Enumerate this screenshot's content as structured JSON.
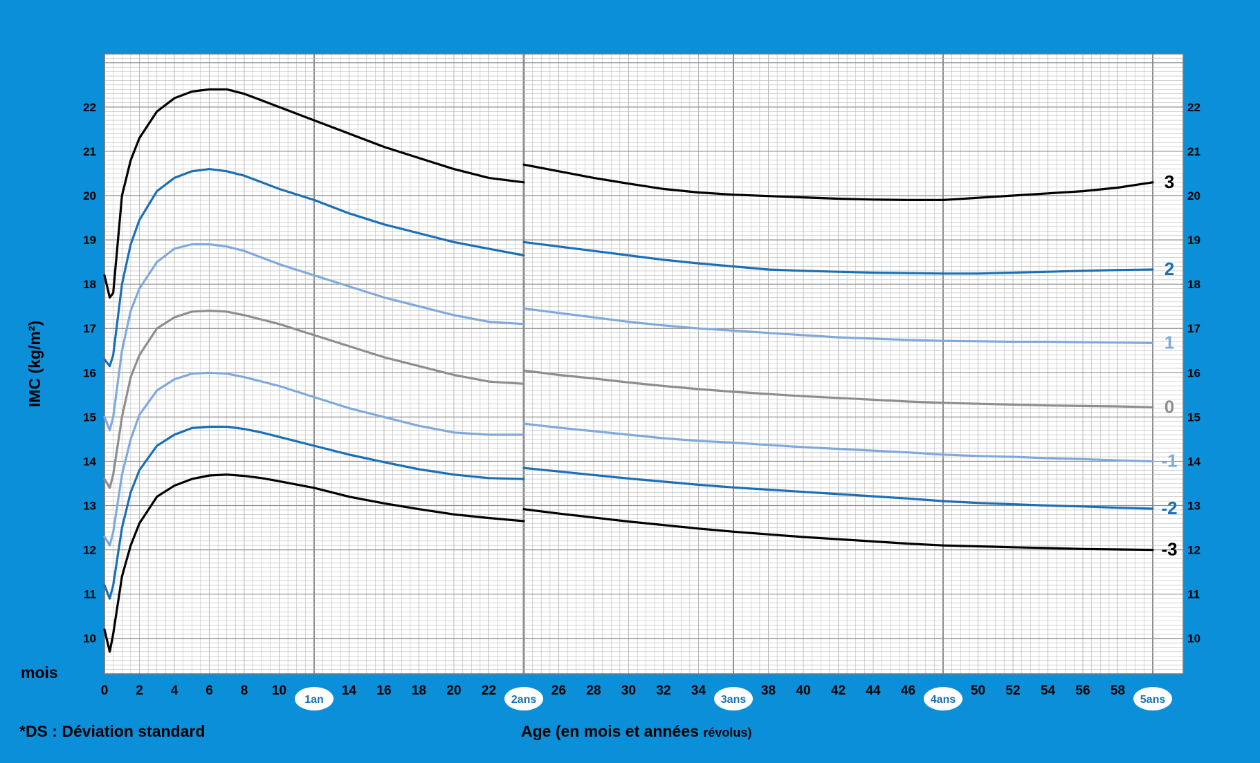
{
  "chart_data": {
    "type": "line",
    "title": "",
    "xlabel_main": "Age (en mois et années",
    "xlabel_small": "révolus)",
    "ylabel": "IMC (kg/m²)",
    "x_unit_label": "mois",
    "footnote": "*DS : Déviation standard",
    "xlim": [
      0,
      60
    ],
    "ylim": [
      9.2,
      23.2
    ],
    "x_ticks": [
      0,
      2,
      4,
      6,
      8,
      10,
      14,
      16,
      18,
      20,
      22,
      26,
      28,
      30,
      32,
      34,
      38,
      40,
      42,
      44,
      46,
      50,
      52,
      54,
      56,
      58
    ],
    "y_ticks": [
      10,
      11,
      12,
      13,
      14,
      15,
      16,
      17,
      18,
      19,
      20,
      21,
      22
    ],
    "year_markers": [
      {
        "x": 12,
        "label": "1an"
      },
      {
        "x": 24,
        "label": "2ans"
      },
      {
        "x": 36,
        "label": "3ans"
      },
      {
        "x": 48,
        "label": "4ans"
      },
      {
        "x": 60,
        "label": "5ans"
      }
    ],
    "grid": true,
    "segments_break_at": 24,
    "colors": {
      "background": "#0b8fd8",
      "plot": "#ffffff",
      "grid_minor": "#b9b9b9",
      "grid_major": "#8c8c8c",
      "sd_3": "#000000",
      "sd_2": "#1a6fb5",
      "sd_1": "#7fa9dc",
      "sd_0": "#8e8e8e"
    },
    "series": [
      {
        "name": "3",
        "color_key": "sd_3",
        "x": [
          0,
          0.3,
          0.5,
          1,
          1.5,
          2,
          3,
          4,
          5,
          6,
          7,
          8,
          9,
          10,
          12,
          14,
          16,
          18,
          20,
          22,
          24,
          24,
          26,
          28,
          30,
          32,
          34,
          36,
          38,
          40,
          42,
          44,
          46,
          48,
          50,
          52,
          54,
          56,
          58,
          60
        ],
        "y": [
          18.2,
          17.7,
          17.8,
          20.0,
          20.8,
          21.3,
          21.9,
          22.2,
          22.35,
          22.4,
          22.4,
          22.3,
          22.15,
          22.0,
          21.7,
          21.4,
          21.1,
          20.85,
          20.6,
          20.4,
          20.3,
          20.7,
          20.55,
          20.4,
          20.27,
          20.15,
          20.07,
          20.02,
          19.99,
          19.96,
          19.93,
          19.91,
          19.9,
          19.9,
          19.95,
          20.0,
          20.05,
          20.1,
          20.18,
          20.3
        ]
      },
      {
        "name": "2",
        "color_key": "sd_2",
        "x": [
          0,
          0.3,
          0.5,
          1,
          1.5,
          2,
          3,
          4,
          5,
          6,
          7,
          8,
          9,
          10,
          12,
          14,
          16,
          18,
          20,
          22,
          24,
          24,
          26,
          28,
          30,
          32,
          34,
          36,
          38,
          40,
          42,
          44,
          46,
          48,
          50,
          52,
          54,
          56,
          58,
          60
        ],
        "y": [
          16.3,
          16.15,
          16.4,
          18.0,
          18.9,
          19.45,
          20.1,
          20.4,
          20.55,
          20.6,
          20.55,
          20.45,
          20.3,
          20.15,
          19.9,
          19.6,
          19.35,
          19.15,
          18.95,
          18.8,
          18.65,
          18.95,
          18.85,
          18.75,
          18.65,
          18.55,
          18.47,
          18.4,
          18.33,
          18.3,
          18.28,
          18.26,
          18.25,
          18.24,
          18.24,
          18.26,
          18.28,
          18.3,
          18.32,
          18.33
        ]
      },
      {
        "name": "1",
        "color_key": "sd_1",
        "x": [
          0,
          0.3,
          0.5,
          1,
          1.5,
          2,
          3,
          4,
          5,
          6,
          7,
          8,
          9,
          10,
          12,
          14,
          16,
          18,
          20,
          22,
          24,
          24,
          26,
          28,
          30,
          32,
          34,
          36,
          38,
          40,
          42,
          44,
          46,
          48,
          50,
          52,
          54,
          56,
          58,
          60
        ],
        "y": [
          15.0,
          14.7,
          15.0,
          16.5,
          17.4,
          17.9,
          18.5,
          18.8,
          18.9,
          18.9,
          18.85,
          18.75,
          18.6,
          18.45,
          18.2,
          17.95,
          17.7,
          17.5,
          17.3,
          17.15,
          17.1,
          17.45,
          17.35,
          17.25,
          17.15,
          17.07,
          17.0,
          16.95,
          16.9,
          16.85,
          16.8,
          16.77,
          16.74,
          16.72,
          16.71,
          16.7,
          16.7,
          16.69,
          16.68,
          16.67
        ]
      },
      {
        "name": "0",
        "color_key": "sd_0",
        "x": [
          0,
          0.3,
          0.5,
          1,
          1.5,
          2,
          3,
          4,
          5,
          6,
          7,
          8,
          9,
          10,
          12,
          14,
          16,
          18,
          20,
          22,
          24,
          24,
          26,
          28,
          30,
          32,
          34,
          36,
          38,
          40,
          42,
          44,
          46,
          48,
          50,
          52,
          54,
          56,
          58,
          60
        ],
        "y": [
          13.6,
          13.4,
          13.7,
          15.0,
          15.9,
          16.4,
          17.0,
          17.25,
          17.38,
          17.4,
          17.38,
          17.3,
          17.2,
          17.1,
          16.85,
          16.6,
          16.35,
          16.15,
          15.95,
          15.8,
          15.75,
          16.05,
          15.95,
          15.87,
          15.78,
          15.7,
          15.63,
          15.57,
          15.52,
          15.47,
          15.43,
          15.39,
          15.35,
          15.32,
          15.3,
          15.28,
          15.26,
          15.25,
          15.24,
          15.22
        ]
      },
      {
        "name": "-1",
        "color_key": "sd_1",
        "x": [
          0,
          0.3,
          0.5,
          1,
          1.5,
          2,
          3,
          4,
          5,
          6,
          7,
          8,
          9,
          10,
          12,
          14,
          16,
          18,
          20,
          22,
          24,
          24,
          26,
          28,
          30,
          32,
          34,
          36,
          38,
          40,
          42,
          44,
          46,
          48,
          50,
          52,
          54,
          56,
          58,
          60
        ],
        "y": [
          12.3,
          12.1,
          12.4,
          13.7,
          14.5,
          15.05,
          15.6,
          15.85,
          15.98,
          16.0,
          15.98,
          15.9,
          15.8,
          15.7,
          15.45,
          15.2,
          15.0,
          14.8,
          14.65,
          14.6,
          14.6,
          14.85,
          14.76,
          14.68,
          14.6,
          14.52,
          14.46,
          14.42,
          14.37,
          14.32,
          14.28,
          14.24,
          14.2,
          14.15,
          14.12,
          14.1,
          14.07,
          14.05,
          14.02,
          14.0
        ]
      },
      {
        "name": "-2",
        "color_key": "sd_2",
        "x": [
          0,
          0.3,
          0.5,
          1,
          1.5,
          2,
          3,
          4,
          5,
          6,
          7,
          8,
          9,
          10,
          12,
          14,
          16,
          18,
          20,
          22,
          24,
          24,
          26,
          28,
          30,
          32,
          34,
          36,
          38,
          40,
          42,
          44,
          46,
          48,
          50,
          52,
          54,
          56,
          58,
          60
        ],
        "y": [
          11.2,
          10.9,
          11.2,
          12.5,
          13.3,
          13.8,
          14.35,
          14.6,
          14.75,
          14.78,
          14.78,
          14.73,
          14.65,
          14.55,
          14.35,
          14.15,
          13.98,
          13.82,
          13.7,
          13.62,
          13.6,
          13.85,
          13.77,
          13.69,
          13.61,
          13.54,
          13.47,
          13.41,
          13.36,
          13.31,
          13.26,
          13.21,
          13.16,
          13.1,
          13.06,
          13.03,
          13.0,
          12.98,
          12.95,
          12.93
        ]
      },
      {
        "name": "-3",
        "color_key": "sd_3",
        "x": [
          0,
          0.3,
          0.5,
          1,
          1.5,
          2,
          3,
          4,
          5,
          6,
          7,
          8,
          9,
          10,
          12,
          14,
          16,
          18,
          20,
          22,
          24,
          24,
          26,
          28,
          30,
          32,
          34,
          36,
          38,
          40,
          42,
          44,
          46,
          48,
          50,
          52,
          54,
          56,
          58,
          60
        ],
        "y": [
          10.2,
          9.7,
          10.1,
          11.4,
          12.1,
          12.6,
          13.2,
          13.45,
          13.6,
          13.68,
          13.7,
          13.67,
          13.62,
          13.55,
          13.4,
          13.2,
          13.05,
          12.92,
          12.8,
          12.72,
          12.65,
          12.92,
          12.82,
          12.73,
          12.64,
          12.56,
          12.48,
          12.41,
          12.35,
          12.29,
          12.24,
          12.19,
          12.14,
          12.1,
          12.08,
          12.06,
          12.04,
          12.02,
          12.01,
          12.0
        ]
      }
    ]
  }
}
